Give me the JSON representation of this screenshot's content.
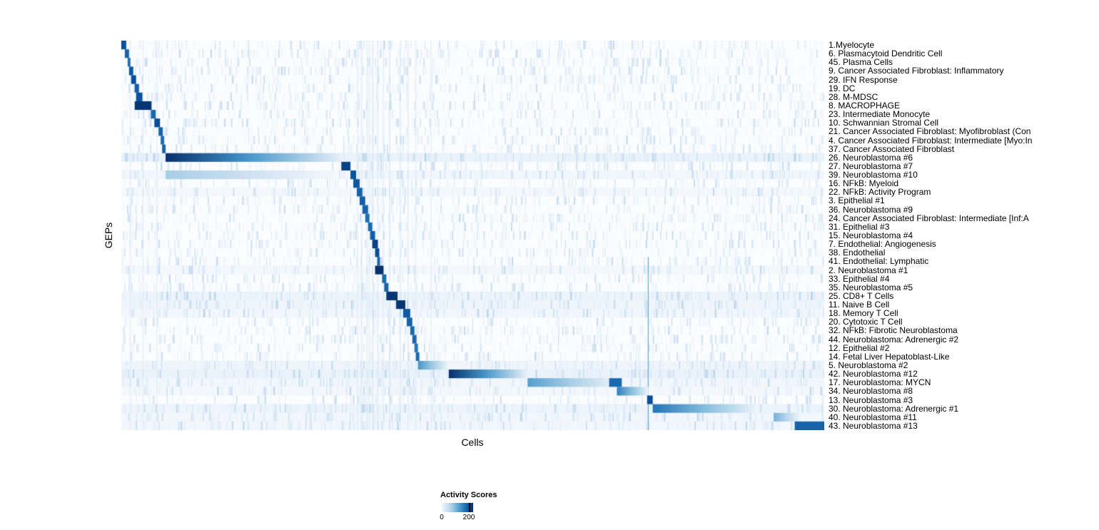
{
  "figure": {
    "background": "#ffffff"
  },
  "chart_data": {
    "type": "heatmap",
    "title": "",
    "xlabel": "Cells",
    "ylabel": "GEPs",
    "grid": false,
    "legend": {
      "title": "Activity Scores",
      "ticks": [
        "0",
        "200"
      ],
      "tick_values": [
        0,
        200
      ],
      "position": "bottom"
    },
    "value_range": [
      0,
      230
    ],
    "colorscale": [
      "#ffffff",
      "#deebf7",
      "#c6dbef",
      "#9ecae1",
      "#6baed6",
      "#4292c6",
      "#2171b5",
      "#08519c",
      "#08306b"
    ],
    "rows": [
      {
        "label": "1.Myelocyte",
        "segments": [
          {
            "start": 0.0,
            "end": 0.007,
            "peak": 200,
            "fade": false
          }
        ]
      },
      {
        "label": "6. Plasmacytoid Dendritic Cell",
        "segments": [
          {
            "start": 0.005,
            "end": 0.011,
            "peak": 185,
            "fade": false
          }
        ]
      },
      {
        "label": "45. Plasma Cells",
        "segments": [
          {
            "start": 0.009,
            "end": 0.013,
            "peak": 175,
            "fade": false
          }
        ]
      },
      {
        "label": "9. Cancer Associated Fibroblast: Inflammatory",
        "segments": [
          {
            "start": 0.011,
            "end": 0.017,
            "peak": 195,
            "fade": false
          }
        ]
      },
      {
        "label": "29. IFN Response",
        "segments": [
          {
            "start": 0.014,
            "end": 0.021,
            "peak": 205,
            "fade": false
          }
        ]
      },
      {
        "label": "19. DC",
        "segments": [
          {
            "start": 0.019,
            "end": 0.025,
            "peak": 190,
            "fade": false
          }
        ]
      },
      {
        "label": "28. M-MDSC",
        "segments": [
          {
            "start": 0.021,
            "end": 0.03,
            "peak": 200,
            "fade": false
          }
        ]
      },
      {
        "label": "8. MACROPHAGE",
        "segments": [
          {
            "start": 0.019,
            "end": 0.043,
            "peak": 225,
            "fade": false
          }
        ]
      },
      {
        "label": "23. Intermediate Monocyte",
        "segments": [
          {
            "start": 0.042,
            "end": 0.049,
            "peak": 180,
            "fade": false
          }
        ]
      },
      {
        "label": "10. Schwannian Stromal Cell",
        "segments": [
          {
            "start": 0.047,
            "end": 0.055,
            "peak": 205,
            "fade": false
          }
        ]
      },
      {
        "label": "21. Cancer Associated Fibroblast: Myofibroblast (Con",
        "segments": [
          {
            "start": 0.053,
            "end": 0.059,
            "peak": 185,
            "fade": false
          }
        ]
      },
      {
        "label": "4. Cancer Associated Fibroblast: Intermediate [Myo:In",
        "segments": [
          {
            "start": 0.056,
            "end": 0.061,
            "peak": 175,
            "fade": false
          }
        ]
      },
      {
        "label": "37. Cancer Associated Fibroblast",
        "segments": [
          {
            "start": 0.058,
            "end": 0.063,
            "peak": 185,
            "fade": false
          }
        ]
      },
      {
        "label": "26. Neuroblastoma #6",
        "wash": 18,
        "segments": [
          {
            "start": 0.063,
            "end": 0.316,
            "peak": 230,
            "fade": true
          }
        ]
      },
      {
        "label": "27. Neuroblastoma #7",
        "segments": [
          {
            "start": 0.313,
            "end": 0.326,
            "peak": 215,
            "fade": false
          }
        ]
      },
      {
        "label": "39. Neuroblastoma #10",
        "wash": 12,
        "segments": [
          {
            "start": 0.063,
            "end": 0.31,
            "peak": 80,
            "fade": true
          },
          {
            "start": 0.326,
            "end": 0.334,
            "peak": 200,
            "fade": false
          }
        ]
      },
      {
        "label": "16. NFkB: Myeloid",
        "segments": [
          {
            "start": 0.33,
            "end": 0.339,
            "peak": 195,
            "fade": false
          }
        ]
      },
      {
        "label": "22. NFkB: Activity Program",
        "wash": 10,
        "segments": [
          {
            "start": 0.335,
            "end": 0.343,
            "peak": 185,
            "fade": false
          }
        ]
      },
      {
        "label": "3. Epithelial #1",
        "segments": [
          {
            "start": 0.339,
            "end": 0.347,
            "peak": 190,
            "fade": false
          }
        ]
      },
      {
        "label": "36. Neuroblastoma #9",
        "segments": [
          {
            "start": 0.343,
            "end": 0.351,
            "peak": 185,
            "fade": false
          }
        ]
      },
      {
        "label": "24. Cancer Associated Fibroblast: Intermediate [Inf:A",
        "segments": [
          {
            "start": 0.347,
            "end": 0.353,
            "peak": 175,
            "fade": false
          }
        ]
      },
      {
        "label": "31. Epithelial #3",
        "segments": [
          {
            "start": 0.351,
            "end": 0.357,
            "peak": 180,
            "fade": false
          }
        ]
      },
      {
        "label": "15. Neuroblastoma #4",
        "segments": [
          {
            "start": 0.354,
            "end": 0.361,
            "peak": 190,
            "fade": false
          }
        ]
      },
      {
        "label": "7. Endothelial: Angiogenesis",
        "segments": [
          {
            "start": 0.357,
            "end": 0.365,
            "peak": 215,
            "fade": false
          }
        ]
      },
      {
        "label": "38. Endothelial",
        "segments": [
          {
            "start": 0.361,
            "end": 0.367,
            "peak": 205,
            "fade": false
          }
        ]
      },
      {
        "label": "41. Endothelial: Lymphatic",
        "segments": [
          {
            "start": 0.364,
            "end": 0.368,
            "peak": 185,
            "fade": false
          }
        ]
      },
      {
        "label": "2. Neuroblastoma #1",
        "wash": 10,
        "segments": [
          {
            "start": 0.361,
            "end": 0.373,
            "peak": 230,
            "fade": false
          }
        ]
      },
      {
        "label": "33. Epithelial #4",
        "segments": [
          {
            "start": 0.371,
            "end": 0.377,
            "peak": 180,
            "fade": false
          }
        ]
      },
      {
        "label": "35. Neuroblastoma #5",
        "segments": [
          {
            "start": 0.374,
            "end": 0.38,
            "peak": 185,
            "fade": false
          }
        ]
      },
      {
        "label": "25. CD8+ T Cells",
        "wash": 16,
        "segments": [
          {
            "start": 0.377,
            "end": 0.393,
            "peak": 225,
            "fade": false
          }
        ]
      },
      {
        "label": "11. Naive B Cell",
        "wash": 14,
        "segments": [
          {
            "start": 0.391,
            "end": 0.404,
            "peak": 225,
            "fade": false
          }
        ]
      },
      {
        "label": "18. Memory T Cell",
        "wash": 12,
        "segments": [
          {
            "start": 0.401,
            "end": 0.411,
            "peak": 195,
            "fade": false
          }
        ]
      },
      {
        "label": "20. Cytotoxic T Cell",
        "segments": [
          {
            "start": 0.406,
            "end": 0.414,
            "peak": 185,
            "fade": false
          }
        ]
      },
      {
        "label": "32. NFkB: Fibrotic Neuroblastoma",
        "segments": [
          {
            "start": 0.411,
            "end": 0.417,
            "peak": 180,
            "fade": false
          }
        ]
      },
      {
        "label": "44. Neuroblastoma: Adrenergic #2",
        "segments": [
          {
            "start": 0.414,
            "end": 0.42,
            "peak": 180,
            "fade": false
          }
        ]
      },
      {
        "label": "12. Epithelial #2",
        "segments": [
          {
            "start": 0.417,
            "end": 0.422,
            "peak": 170,
            "fade": false
          }
        ]
      },
      {
        "label": "14. Fetal Liver Hepatoblast-Like",
        "segments": [
          {
            "start": 0.419,
            "end": 0.424,
            "peak": 180,
            "fade": false
          }
        ]
      },
      {
        "label": "5. Neuroblastoma #2",
        "wash": 14,
        "segments": [
          {
            "start": 0.422,
            "end": 0.466,
            "peak": 140,
            "fade": true
          }
        ]
      },
      {
        "label": "42. Neuroblastoma #12",
        "wash": 18,
        "segments": [
          {
            "start": 0.466,
            "end": 0.578,
            "peak": 230,
            "fade": true
          }
        ]
      },
      {
        "label": "17. Neuroblastoma: MYCN",
        "wash": 12,
        "segments": [
          {
            "start": 0.578,
            "end": 0.712,
            "peak": 130,
            "fade": true
          },
          {
            "start": 0.694,
            "end": 0.712,
            "peak": 180,
            "fade": false
          }
        ]
      },
      {
        "label": "34. Neuroblastoma #8",
        "wash": 10,
        "segments": [
          {
            "start": 0.705,
            "end": 0.75,
            "peak": 160,
            "fade": true
          }
        ]
      },
      {
        "label": "13. Neuroblastoma #3",
        "segments": [
          {
            "start": 0.748,
            "end": 0.756,
            "peak": 205,
            "fade": false
          }
        ]
      },
      {
        "label": "30. Neuroblastoma: Adrenergic #1",
        "wash": 16,
        "segments": [
          {
            "start": 0.756,
            "end": 0.905,
            "peak": 170,
            "fade": true
          }
        ]
      },
      {
        "label": "40. Neuroblastoma #11",
        "wash": 12,
        "segments": [
          {
            "start": 0.928,
            "end": 0.968,
            "peak": 110,
            "fade": true
          }
        ]
      },
      {
        "label": "43. Neuroblastoma #13",
        "wash": 12,
        "segments": [
          {
            "start": 0.958,
            "end": 1.0,
            "peak": 185,
            "fade": false
          }
        ]
      }
    ],
    "streak_columns": [
      {
        "x": 0.012,
        "v": 35
      },
      {
        "x": 0.03,
        "v": 30
      },
      {
        "x": 0.05,
        "v": 30
      },
      {
        "x": 0.335,
        "v": 35
      },
      {
        "x": 0.341,
        "v": 45
      },
      {
        "x": 0.349,
        "v": 40
      },
      {
        "x": 0.352,
        "v": 35
      },
      {
        "x": 0.357,
        "v": 50
      },
      {
        "x": 0.364,
        "v": 45
      },
      {
        "x": 0.372,
        "v": 40
      },
      {
        "x": 0.381,
        "v": 50
      },
      {
        "x": 0.396,
        "v": 45
      },
      {
        "x": 0.407,
        "v": 40
      },
      {
        "x": 0.418,
        "v": 35
      },
      {
        "x": 0.44,
        "v": 30
      }
    ],
    "vlines": [
      {
        "x": 0.749,
        "v": 120,
        "row_start": 25,
        "row_end": 45
      }
    ]
  }
}
